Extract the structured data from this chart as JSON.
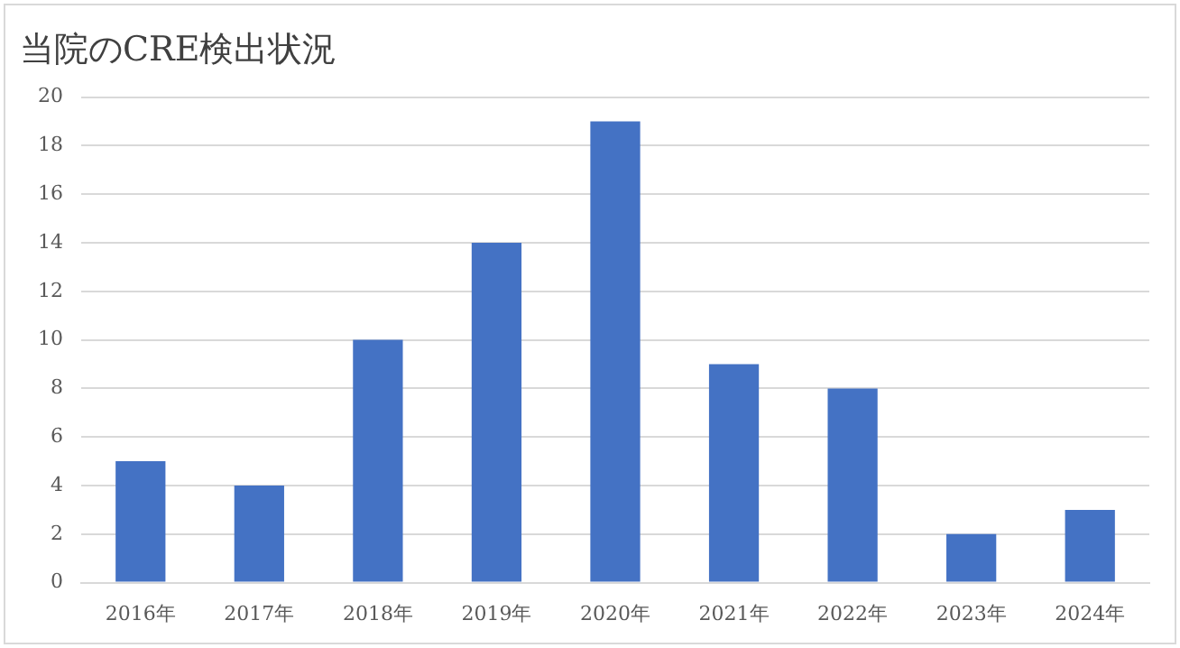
{
  "chart_data": {
    "type": "bar",
    "title": "当院のCRE検出状況",
    "categories": [
      "2016年",
      "2017年",
      "2018年",
      "2019年",
      "2020年",
      "2021年",
      "2022年",
      "2023年",
      "2024年"
    ],
    "values": [
      5,
      4,
      10,
      14,
      19,
      9,
      8,
      2,
      3
    ],
    "color": "#4472c4",
    "ylim": [
      0,
      20
    ],
    "yticks": [
      0,
      2,
      4,
      6,
      8,
      10,
      12,
      14,
      16,
      18,
      20
    ],
    "grid": "y",
    "legend": false
  }
}
